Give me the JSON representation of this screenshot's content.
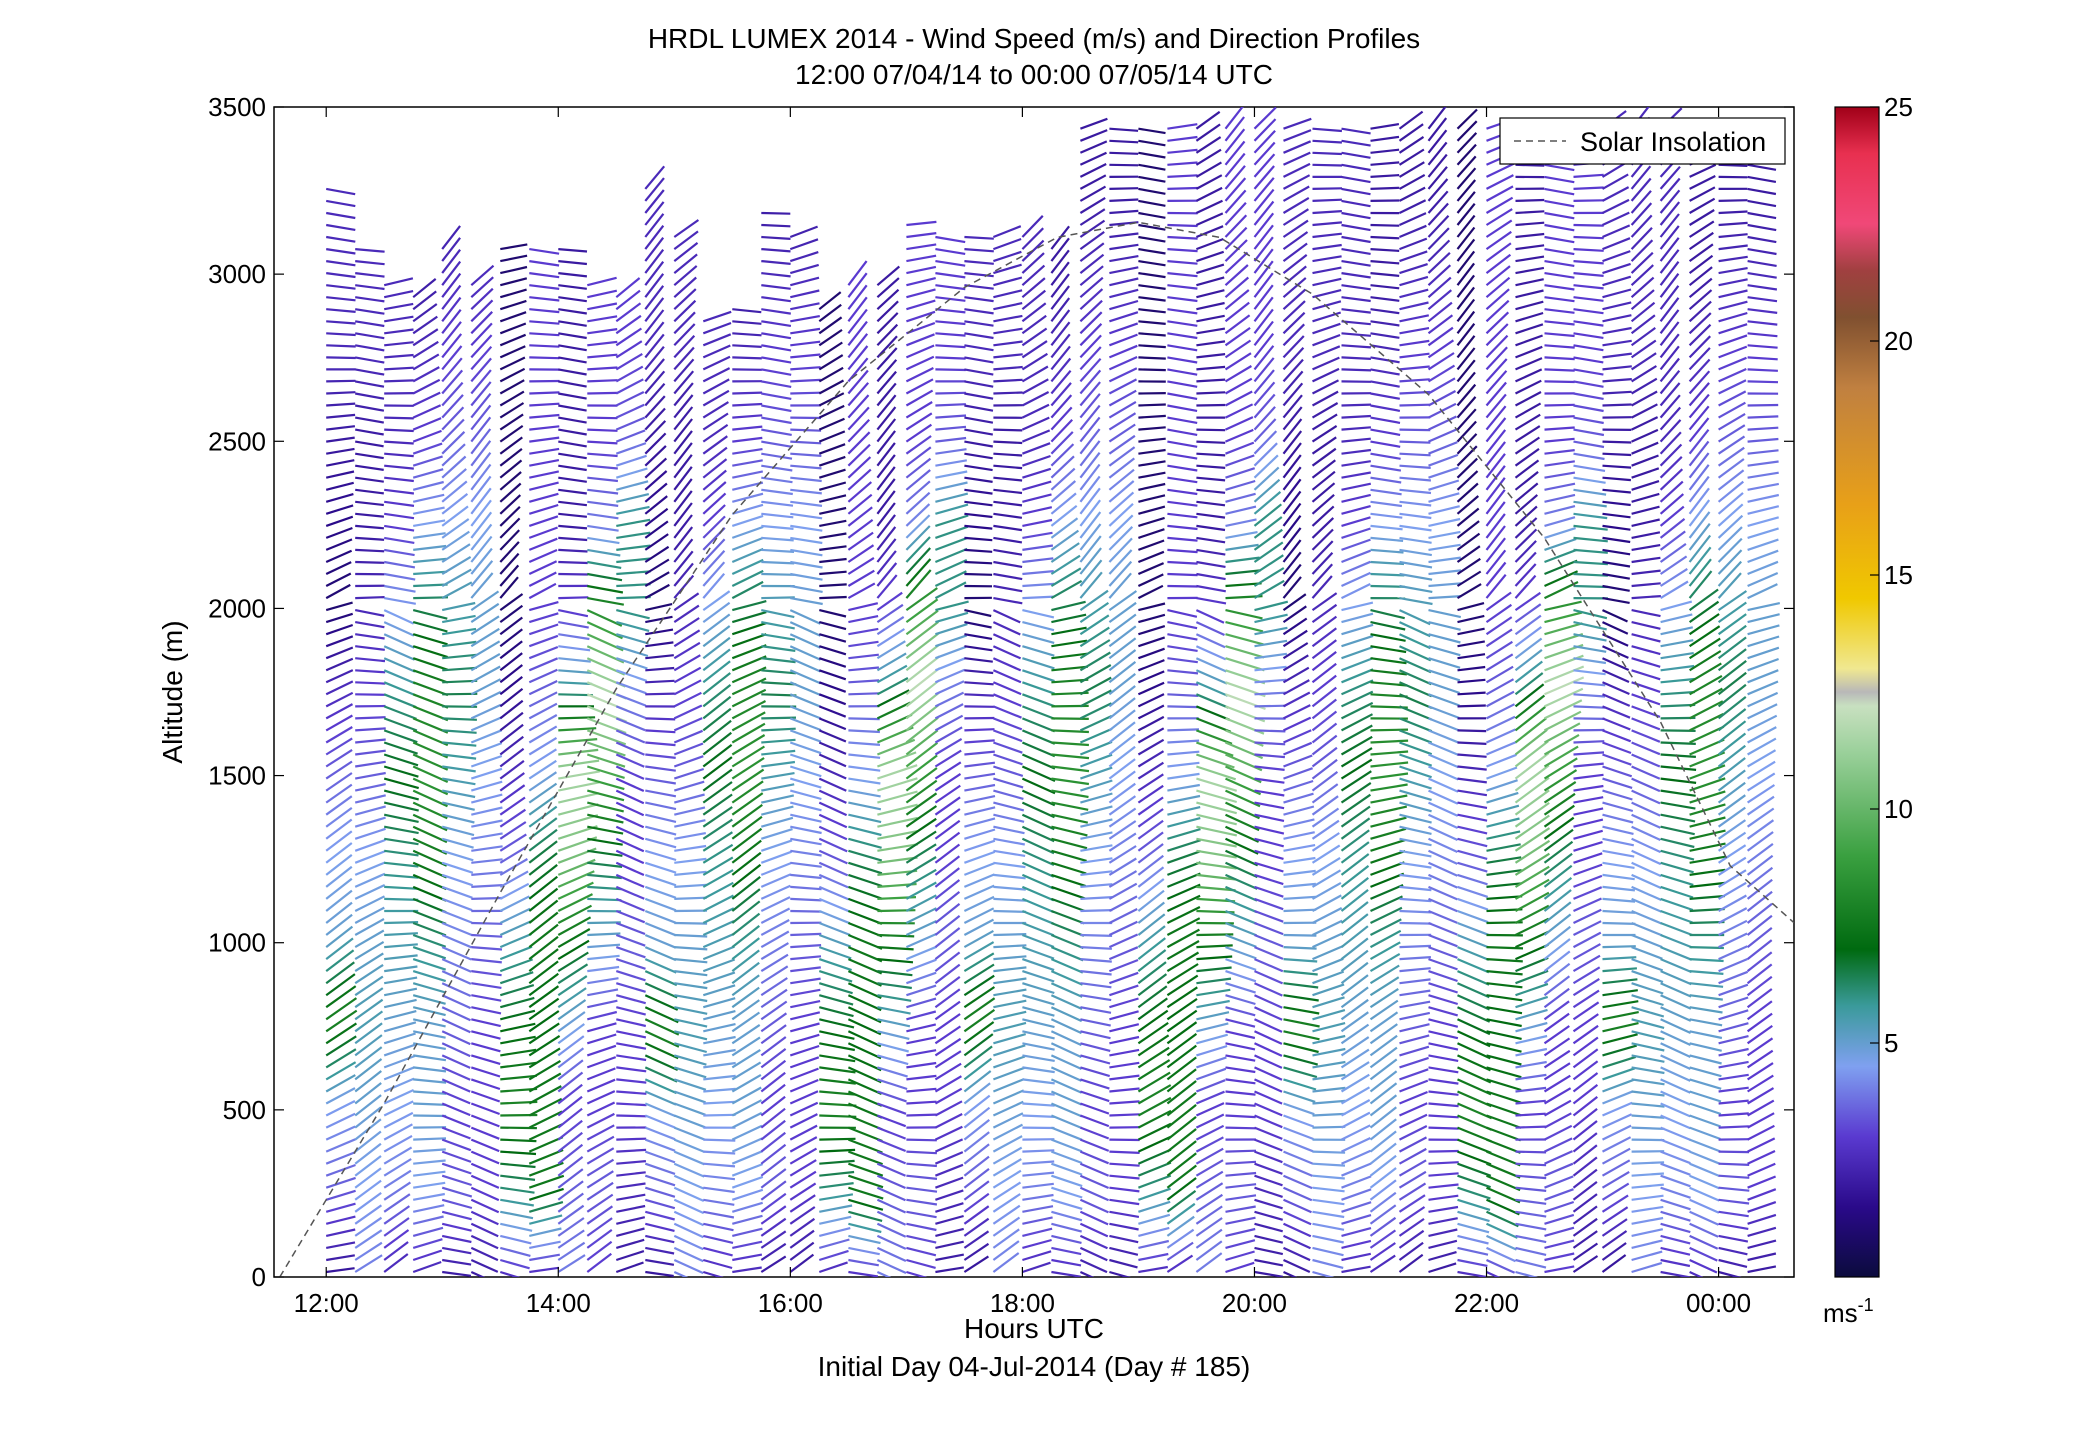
{
  "chart_data": {
    "type": "vector-field",
    "title": "HRDL LUMEX 2014 - Wind Speed (m/s) and Direction Profiles",
    "subtitle": "12:00 07/04/14 to 00:00 07/05/14  UTC",
    "xlabel": "Hours UTC",
    "xlabel2": "Initial Day 04-Jul-2014 (Day # 185)",
    "ylabel": "Altitude (m)",
    "xlim": [
      11.55,
      24.65
    ],
    "ylim": [
      0,
      3500
    ],
    "x_ticks": [
      12,
      14,
      16,
      18,
      20,
      22,
      24
    ],
    "x_tick_labels": [
      "12:00",
      "14:00",
      "16:00",
      "18:00",
      "20:00",
      "22:00",
      "00:00"
    ],
    "y_ticks": [
      0,
      500,
      1000,
      1500,
      2000,
      2500,
      3000,
      3500
    ],
    "y_tick_labels": [
      "0",
      "500",
      "1000",
      "1500",
      "2000",
      "2500",
      "3000",
      "3500"
    ],
    "grid": false,
    "legend": {
      "entries": [
        "Solar Insolation"
      ],
      "placement": "top-right"
    },
    "colorbar": {
      "range": [
        0,
        25
      ],
      "ticks": [
        5,
        10,
        15,
        20,
        25
      ],
      "tick_labels": [
        "5",
        "10",
        "15",
        "20",
        "25"
      ],
      "unit_label": "ms",
      "unit_exp": "-1",
      "colors": [
        "#0b0b3d",
        "#2a0a8a",
        "#5a3ad0",
        "#7fa0f0",
        "#3a9a9a",
        "#006a10",
        "#3aa040",
        "#9ad09a",
        "#c8e0c0",
        "#b8b8b8",
        "#f0e890",
        "#f0c800",
        "#e8a018",
        "#c08040",
        "#805030",
        "#a04040",
        "#f04878",
        "#e83050",
        "#a00018"
      ],
      "stops": [
        0,
        1.5,
        3,
        4.5,
        5.8,
        7,
        9,
        11.2,
        12.2,
        12.5,
        13,
        14.5,
        16.5,
        19,
        20.5,
        21.5,
        22.5,
        24,
        25
      ]
    },
    "solar_insolation": {
      "x": [
        11.6,
        12.5,
        13.5,
        14.5,
        15.5,
        16.5,
        17.5,
        18.3,
        19.0,
        19.7,
        20.5,
        21.5,
        22.5,
        23.5,
        24.1,
        24.65
      ],
      "y": [
        0,
        520,
        1150,
        1760,
        2280,
        2680,
        2960,
        3110,
        3155,
        3110,
        2940,
        2640,
        2210,
        1660,
        1230,
        1060
      ]
    },
    "wind_profiles": {
      "description": "wind barbs along vertical profiles at ~15 min intervals; speed in m/s encoded by colour",
      "profile_times": [
        12.0,
        12.25,
        12.5,
        12.75,
        13.0,
        13.25,
        13.5,
        13.75,
        14.0,
        14.25,
        14.5,
        14.75,
        15.0,
        15.25,
        15.5,
        15.75,
        16.0,
        16.25,
        16.5,
        16.75,
        17.0,
        17.25,
        17.5,
        17.75,
        18.0,
        18.25,
        18.5,
        18.75,
        19.0,
        19.25,
        19.5,
        19.75,
        20.0,
        20.25,
        20.5,
        20.75,
        21.0,
        21.25,
        21.5,
        21.75,
        22.0,
        22.25,
        22.5,
        22.75,
        23.0,
        23.25,
        23.5,
        23.75,
        24.0,
        24.25
      ],
      "top_altitudes": [
        3270,
        3080,
        2990,
        2950,
        3080,
        2980,
        3080,
        3080,
        3080,
        3000,
        2960,
        3270,
        3120,
        2880,
        2900,
        3190,
        3140,
        2920,
        2980,
        3000,
        3160,
        3120,
        3140,
        3140,
        3140,
        3100,
        3460,
        3460,
        3460,
        3460,
        3460,
        3460,
        3460,
        3460,
        3460,
        3460,
        3460,
        3460,
        3460,
        3460,
        3460,
        3460,
        3460,
        3460,
        3460,
        3460,
        3460,
        3460,
        3460,
        3460
      ],
      "speed_by_altitude_m": [
        0,
        250,
        500,
        750,
        1000,
        1250,
        1500,
        1750,
        2000,
        2250,
        2500,
        2750,
        3000,
        3250,
        3500
      ],
      "speed_ms": [
        [
          1.8,
          3.5,
          4.5,
          8.0,
          5.0,
          4.5,
          3.5,
          2.5,
          1.0,
          1.5,
          2.0,
          2.5,
          2.5,
          2.5,
          2.5
        ],
        [
          4.0,
          4.5,
          5.0,
          5.5,
          5.0,
          4.5,
          3.5,
          3.0,
          2.5,
          2.0,
          2.0,
          2.5,
          2.5,
          2.5,
          2.5
        ],
        [
          2.5,
          4.0,
          4.5,
          5.0,
          5.5,
          6.0,
          7.0,
          6.0,
          4.5,
          3.0,
          2.5,
          2.5,
          2.5,
          2.5,
          2.5
        ],
        [
          2.5,
          4.5,
          5.0,
          5.0,
          6.0,
          7.5,
          8.5,
          8.0,
          6.5,
          4.5,
          3.0,
          2.5,
          2.0,
          2.0,
          2.0
        ],
        [
          2.0,
          3.5,
          3.0,
          3.5,
          4.0,
          4.5,
          5.5,
          6.5,
          5.5,
          4.5,
          3.5,
          3.0,
          2.5,
          2.0,
          2.0
        ],
        [
          2.0,
          3.0,
          3.0,
          3.0,
          3.5,
          4.0,
          4.5,
          5.0,
          5.0,
          4.5,
          3.5,
          3.0,
          2.5,
          2.0,
          2.0
        ],
        [
          2.5,
          6.0,
          8.0,
          7.0,
          5.5,
          3.5,
          2.5,
          1.5,
          1.0,
          1.0,
          1.0,
          1.0,
          1.0,
          1.0,
          1.0
        ],
        [
          2.5,
          7.5,
          7.5,
          7.0,
          7.5,
          6.5,
          4.5,
          3.5,
          3.0,
          3.0,
          3.0,
          3.0,
          3.0,
          3.0,
          3.0
        ],
        [
          4.0,
          3.5,
          3.0,
          5.0,
          7.5,
          10.5,
          11.5,
          6.0,
          3.0,
          2.0,
          2.0,
          2.0,
          2.0,
          2.0,
          2.0
        ],
        [
          3.0,
          3.5,
          3.0,
          3.0,
          5.0,
          6.5,
          9.0,
          12.0,
          8.5,
          4.0,
          3.0,
          3.0,
          3.0,
          3.0,
          3.0
        ],
        [
          2.0,
          2.5,
          3.0,
          3.0,
          3.5,
          3.0,
          3.0,
          4.0,
          6.0,
          6.0,
          3.5,
          3.0,
          3.0,
          3.0,
          3.0
        ]
      ]
    }
  }
}
